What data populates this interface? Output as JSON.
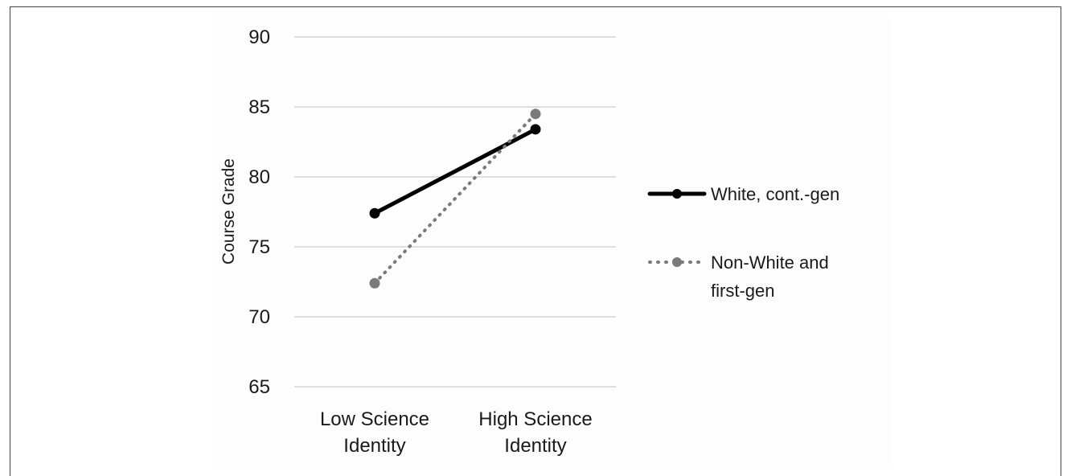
{
  "chart_data": {
    "type": "line",
    "title": "",
    "xlabel": "",
    "ylabel": "Course Grade",
    "categories": [
      "Low Science Identity",
      "High Science Identity"
    ],
    "category_lines": [
      [
        "Low Science",
        "Identity"
      ],
      [
        "High Science",
        "Identity"
      ]
    ],
    "ylim": [
      65,
      90
    ],
    "yticks": [
      "90",
      "85",
      "80",
      "75",
      "70",
      "65"
    ],
    "grid": true,
    "legend_position": "right",
    "series": [
      {
        "name": "White, cont.-gen",
        "name_lines": [
          "White, cont.-gen"
        ],
        "values": [
          77.4,
          83.4
        ],
        "color": "#000000",
        "style": "solid"
      },
      {
        "name": "Non-White and first-gen",
        "name_lines": [
          "Non-White and",
          "first-gen"
        ],
        "values": [
          72.4,
          84.5
        ],
        "color": "#7a7a7a",
        "style": "dotted"
      }
    ]
  }
}
